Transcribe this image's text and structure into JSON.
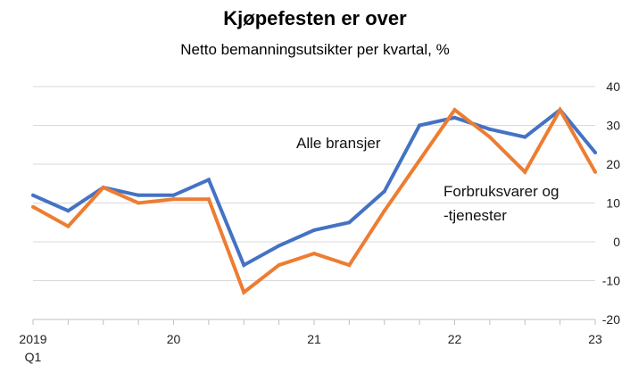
{
  "chart_data": {
    "type": "line",
    "title": "Kjøpefesten er over",
    "subtitle": "Netto bemanningsutsikter per kvartal, %",
    "x": [
      "2019 Q1",
      "2019 Q2",
      "2019 Q3",
      "2019 Q4",
      "2020 Q1",
      "2020 Q2",
      "2020 Q3",
      "2020 Q4",
      "2021 Q1",
      "2021 Q2",
      "2021 Q3",
      "2021 Q4",
      "2022 Q1",
      "2022 Q2",
      "2022 Q3",
      "2022 Q4",
      "2023 Q1"
    ],
    "x_tick_labels": [
      {
        "index": 0,
        "lines": [
          "2019",
          "Q1"
        ]
      },
      {
        "index": 4,
        "lines": [
          "20"
        ]
      },
      {
        "index": 8,
        "lines": [
          "21"
        ]
      },
      {
        "index": 12,
        "lines": [
          "22"
        ]
      },
      {
        "index": 16,
        "lines": [
          "23"
        ]
      }
    ],
    "ylim": [
      -20,
      40
    ],
    "yticks": [
      -20,
      -10,
      0,
      10,
      20,
      30,
      40
    ],
    "ytick_labels": [
      "-20",
      "-10",
      "0",
      "10",
      "20",
      "30",
      "40"
    ],
    "y_axis_side": "right",
    "grid": true,
    "series": [
      {
        "name": "Alle bransjer",
        "label_lines": [
          "Alle bransjer"
        ],
        "color": "#4472C4",
        "values": [
          12,
          8,
          14,
          12,
          12,
          16,
          -6,
          -1,
          3,
          5,
          13,
          30,
          32,
          29,
          27,
          34,
          23
        ]
      },
      {
        "name": "Forbruksvarer og -tjenester",
        "label_lines": [
          "Forbruksvarer og",
          "-tjenester"
        ],
        "color": "#ED7D31",
        "values": [
          9,
          4,
          14,
          10,
          11,
          11,
          -13,
          -6,
          -3,
          -6,
          8,
          21,
          34,
          27,
          18,
          34,
          18
        ]
      }
    ]
  }
}
